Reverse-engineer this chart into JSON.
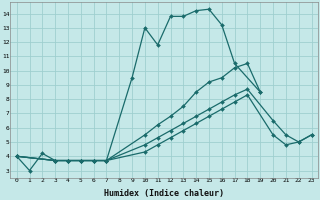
{
  "xlabel": "Humidex (Indice chaleur)",
  "background_color": "#c5e8e8",
  "grid_color": "#9fcfcf",
  "line_color": "#1a6b6b",
  "xlim": [
    -0.5,
    23.5
  ],
  "ylim": [
    2.5,
    14.8
  ],
  "xticks": [
    0,
    1,
    2,
    3,
    4,
    5,
    6,
    7,
    8,
    9,
    10,
    11,
    12,
    13,
    14,
    15,
    16,
    17,
    18,
    19,
    20,
    21,
    22,
    23
  ],
  "yticks": [
    3,
    4,
    5,
    6,
    7,
    8,
    9,
    10,
    11,
    12,
    13,
    14
  ],
  "series_clean": [
    {
      "x": [
        0,
        1,
        2,
        3,
        4,
        5,
        6,
        7,
        9,
        10,
        11,
        12,
        13,
        14,
        15,
        16,
        17,
        19
      ],
      "y": [
        4.0,
        3.0,
        4.2,
        3.7,
        3.7,
        3.7,
        3.7,
        3.7,
        9.5,
        13.0,
        11.8,
        13.8,
        13.8,
        14.2,
        14.3,
        13.2,
        10.5,
        8.5
      ]
    },
    {
      "x": [
        0,
        3,
        4,
        5,
        6,
        7,
        10,
        11,
        12,
        13,
        14,
        15,
        16,
        17,
        18,
        19
      ],
      "y": [
        4.0,
        3.7,
        3.7,
        3.7,
        3.7,
        3.7,
        5.5,
        6.2,
        6.8,
        7.5,
        8.5,
        9.2,
        9.5,
        10.2,
        10.5,
        8.5
      ]
    },
    {
      "x": [
        0,
        3,
        4,
        5,
        6,
        7,
        10,
        11,
        12,
        13,
        14,
        15,
        16,
        17,
        18,
        20,
        21,
        22,
        23
      ],
      "y": [
        4.0,
        3.7,
        3.7,
        3.7,
        3.7,
        3.7,
        4.8,
        5.3,
        5.8,
        6.3,
        6.8,
        7.3,
        7.8,
        8.3,
        8.7,
        6.5,
        5.5,
        5.0,
        5.5
      ]
    },
    {
      "x": [
        0,
        3,
        4,
        5,
        6,
        7,
        10,
        11,
        12,
        13,
        14,
        15,
        16,
        17,
        18,
        20,
        21,
        22,
        23
      ],
      "y": [
        4.0,
        3.7,
        3.7,
        3.7,
        3.7,
        3.7,
        4.3,
        4.8,
        5.3,
        5.8,
        6.3,
        6.8,
        7.3,
        7.8,
        8.3,
        5.5,
        4.8,
        5.0,
        5.5
      ]
    }
  ]
}
